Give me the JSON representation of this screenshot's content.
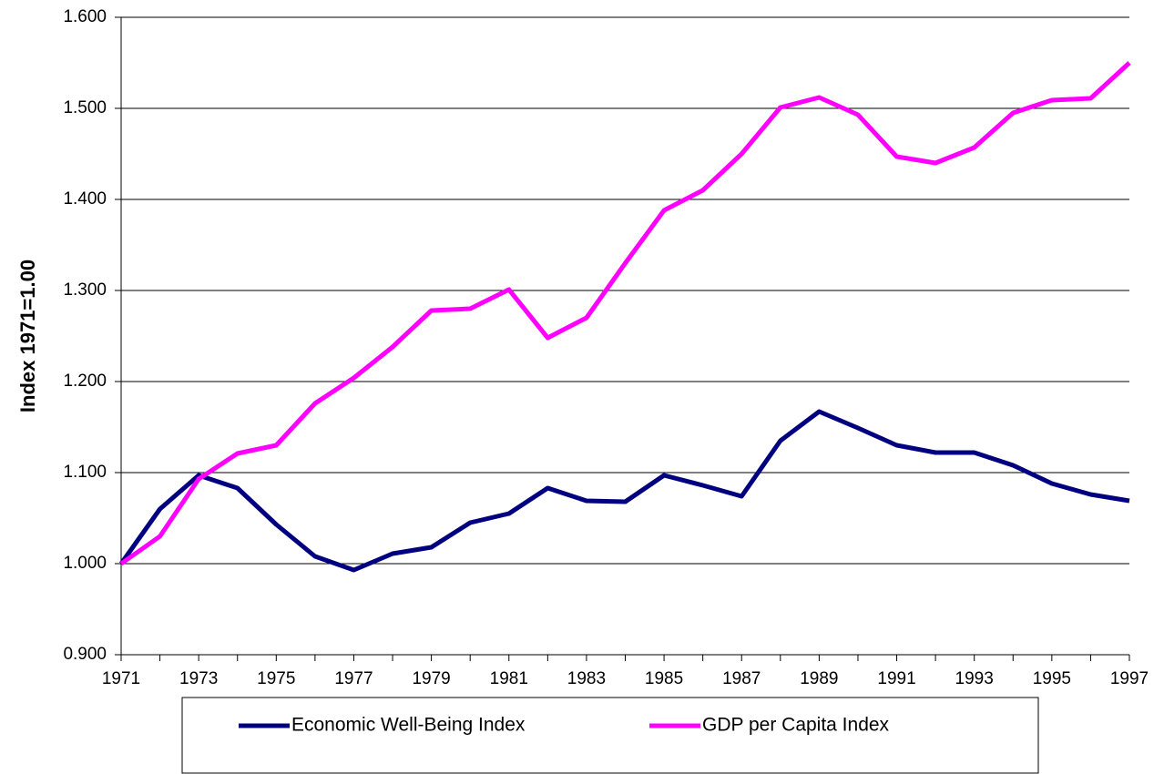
{
  "chart_data": {
    "type": "line",
    "y_label": "Index 1971=1.00",
    "categories": [
      "1971",
      null,
      "1973",
      null,
      "1975",
      null,
      "1977",
      null,
      "1979",
      null,
      "1981",
      null,
      "1983",
      null,
      "1985",
      null,
      "1987",
      null,
      "1989",
      null,
      "1991",
      null,
      "1993",
      null,
      "1995",
      null,
      "1997"
    ],
    "series": [
      {
        "name": "Economic Well-Being Index",
        "color": "#000080",
        "values": [
          1.0,
          1.06,
          1.097,
          1.083,
          1.043,
          1.008,
          0.993,
          1.011,
          1.018,
          1.045,
          1.055,
          1.083,
          1.069,
          1.068,
          1.097,
          1.086,
          1.074,
          1.135,
          1.167,
          1.149,
          1.13,
          1.122,
          1.122,
          1.108,
          1.088,
          1.076,
          1.069
        ]
      },
      {
        "name": "GDP per Capita Index",
        "color": "#ff00ff",
        "values": [
          1.0,
          1.03,
          1.093,
          1.121,
          1.13,
          1.176,
          1.204,
          1.238,
          1.278,
          1.28,
          1.301,
          1.248,
          1.27,
          1.33,
          1.388,
          1.41,
          1.45,
          1.501,
          1.512,
          1.493,
          1.447,
          1.44,
          1.457,
          1.495,
          1.509,
          1.511,
          1.55
        ]
      }
    ],
    "ylim": [
      0.9,
      1.6
    ],
    "yticks": [
      {
        "value": 0.9,
        "label": "0.900"
      },
      {
        "value": 1.0,
        "label": "1.000"
      },
      {
        "value": 1.1,
        "label": "1.100"
      },
      {
        "value": 1.2,
        "label": "1.200"
      },
      {
        "value": 1.3,
        "label": "1.300"
      },
      {
        "value": 1.4,
        "label": "1.400"
      },
      {
        "value": 1.5,
        "label": "1.500"
      },
      {
        "value": 1.6,
        "label": "1.600"
      }
    ],
    "grid": true,
    "legend": "bottom"
  }
}
